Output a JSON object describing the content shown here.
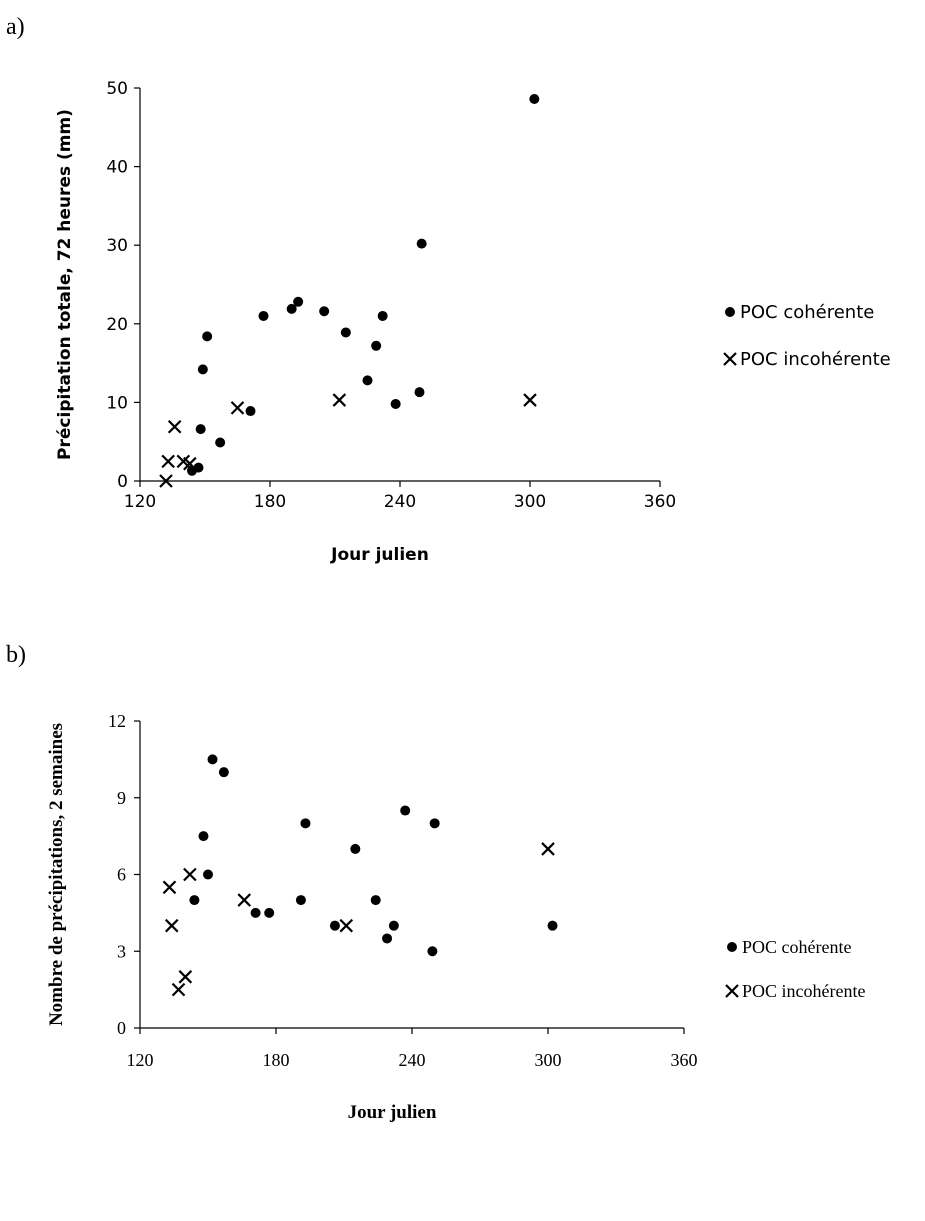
{
  "panels": [
    "a)",
    "b)"
  ],
  "chart_data": [
    {
      "type": "scatter",
      "xlabel": "Jour julien",
      "ylabel": "Précipitation totale, 72 heures (mm)",
      "xlim": [
        120,
        360
      ],
      "ylim": [
        0,
        50
      ],
      "xticks": [
        120,
        180,
        240,
        300,
        360
      ],
      "yticks": [
        0,
        10,
        20,
        30,
        40,
        50
      ],
      "legend_position": "right",
      "series": [
        {
          "name": "POC cohérente",
          "marker": "circle",
          "color": "#000000",
          "points": [
            [
              144,
              1.3
            ],
            [
              147,
              1.7
            ],
            [
              148,
              6.6
            ],
            [
              149,
              14.2
            ],
            [
              151,
              18.4
            ],
            [
              157,
              4.9
            ],
            [
              171,
              8.9
            ],
            [
              177,
              21.0
            ],
            [
              190,
              21.9
            ],
            [
              193,
              22.8
            ],
            [
              205,
              21.6
            ],
            [
              215,
              18.9
            ],
            [
              225,
              12.8
            ],
            [
              229,
              17.2
            ],
            [
              232,
              21.0
            ],
            [
              238,
              9.8
            ],
            [
              249,
              11.3
            ],
            [
              250,
              30.2
            ],
            [
              302,
              48.6
            ]
          ]
        },
        {
          "name": "POC incohérente",
          "marker": "cross",
          "color": "#000000",
          "points": [
            [
              132,
              0.0
            ],
            [
              133,
              2.5
            ],
            [
              136,
              6.9
            ],
            [
              140,
              2.5
            ],
            [
              143,
              2.2
            ],
            [
              165,
              9.3
            ],
            [
              212,
              10.3
            ],
            [
              300,
              10.3
            ]
          ]
        }
      ]
    },
    {
      "type": "scatter",
      "xlabel": "Jour julien",
      "ylabel": "Nombre de précipitations, 2 semaines",
      "xlim": [
        120,
        360
      ],
      "ylim": [
        0,
        12
      ],
      "xticks": [
        120,
        180,
        240,
        300,
        360
      ],
      "yticks": [
        0,
        3,
        6,
        9,
        12
      ],
      "legend_position": "right",
      "series": [
        {
          "name": "POC cohérente",
          "marker": "circle",
          "color": "#000000",
          "points": [
            [
              144,
              5.0
            ],
            [
              148,
              7.5
            ],
            [
              150,
              6.0
            ],
            [
              152,
              10.5
            ],
            [
              157,
              10.0
            ],
            [
              171,
              4.5
            ],
            [
              177,
              4.5
            ],
            [
              191,
              5.0
            ],
            [
              193,
              8.0
            ],
            [
              206,
              4.0
            ],
            [
              215,
              7.0
            ],
            [
              224,
              5.0
            ],
            [
              229,
              3.5
            ],
            [
              232,
              4.0
            ],
            [
              237,
              8.5
            ],
            [
              249,
              3.0
            ],
            [
              250,
              8.0
            ],
            [
              302,
              4.0
            ]
          ]
        },
        {
          "name": "POC incohérente",
          "marker": "cross",
          "color": "#000000",
          "points": [
            [
              133,
              5.5
            ],
            [
              134,
              4.0
            ],
            [
              137,
              1.5
            ],
            [
              140,
              2.0
            ],
            [
              142,
              6.0
            ],
            [
              166,
              5.0
            ],
            [
              211,
              4.0
            ],
            [
              300,
              7.0
            ]
          ]
        }
      ]
    }
  ]
}
